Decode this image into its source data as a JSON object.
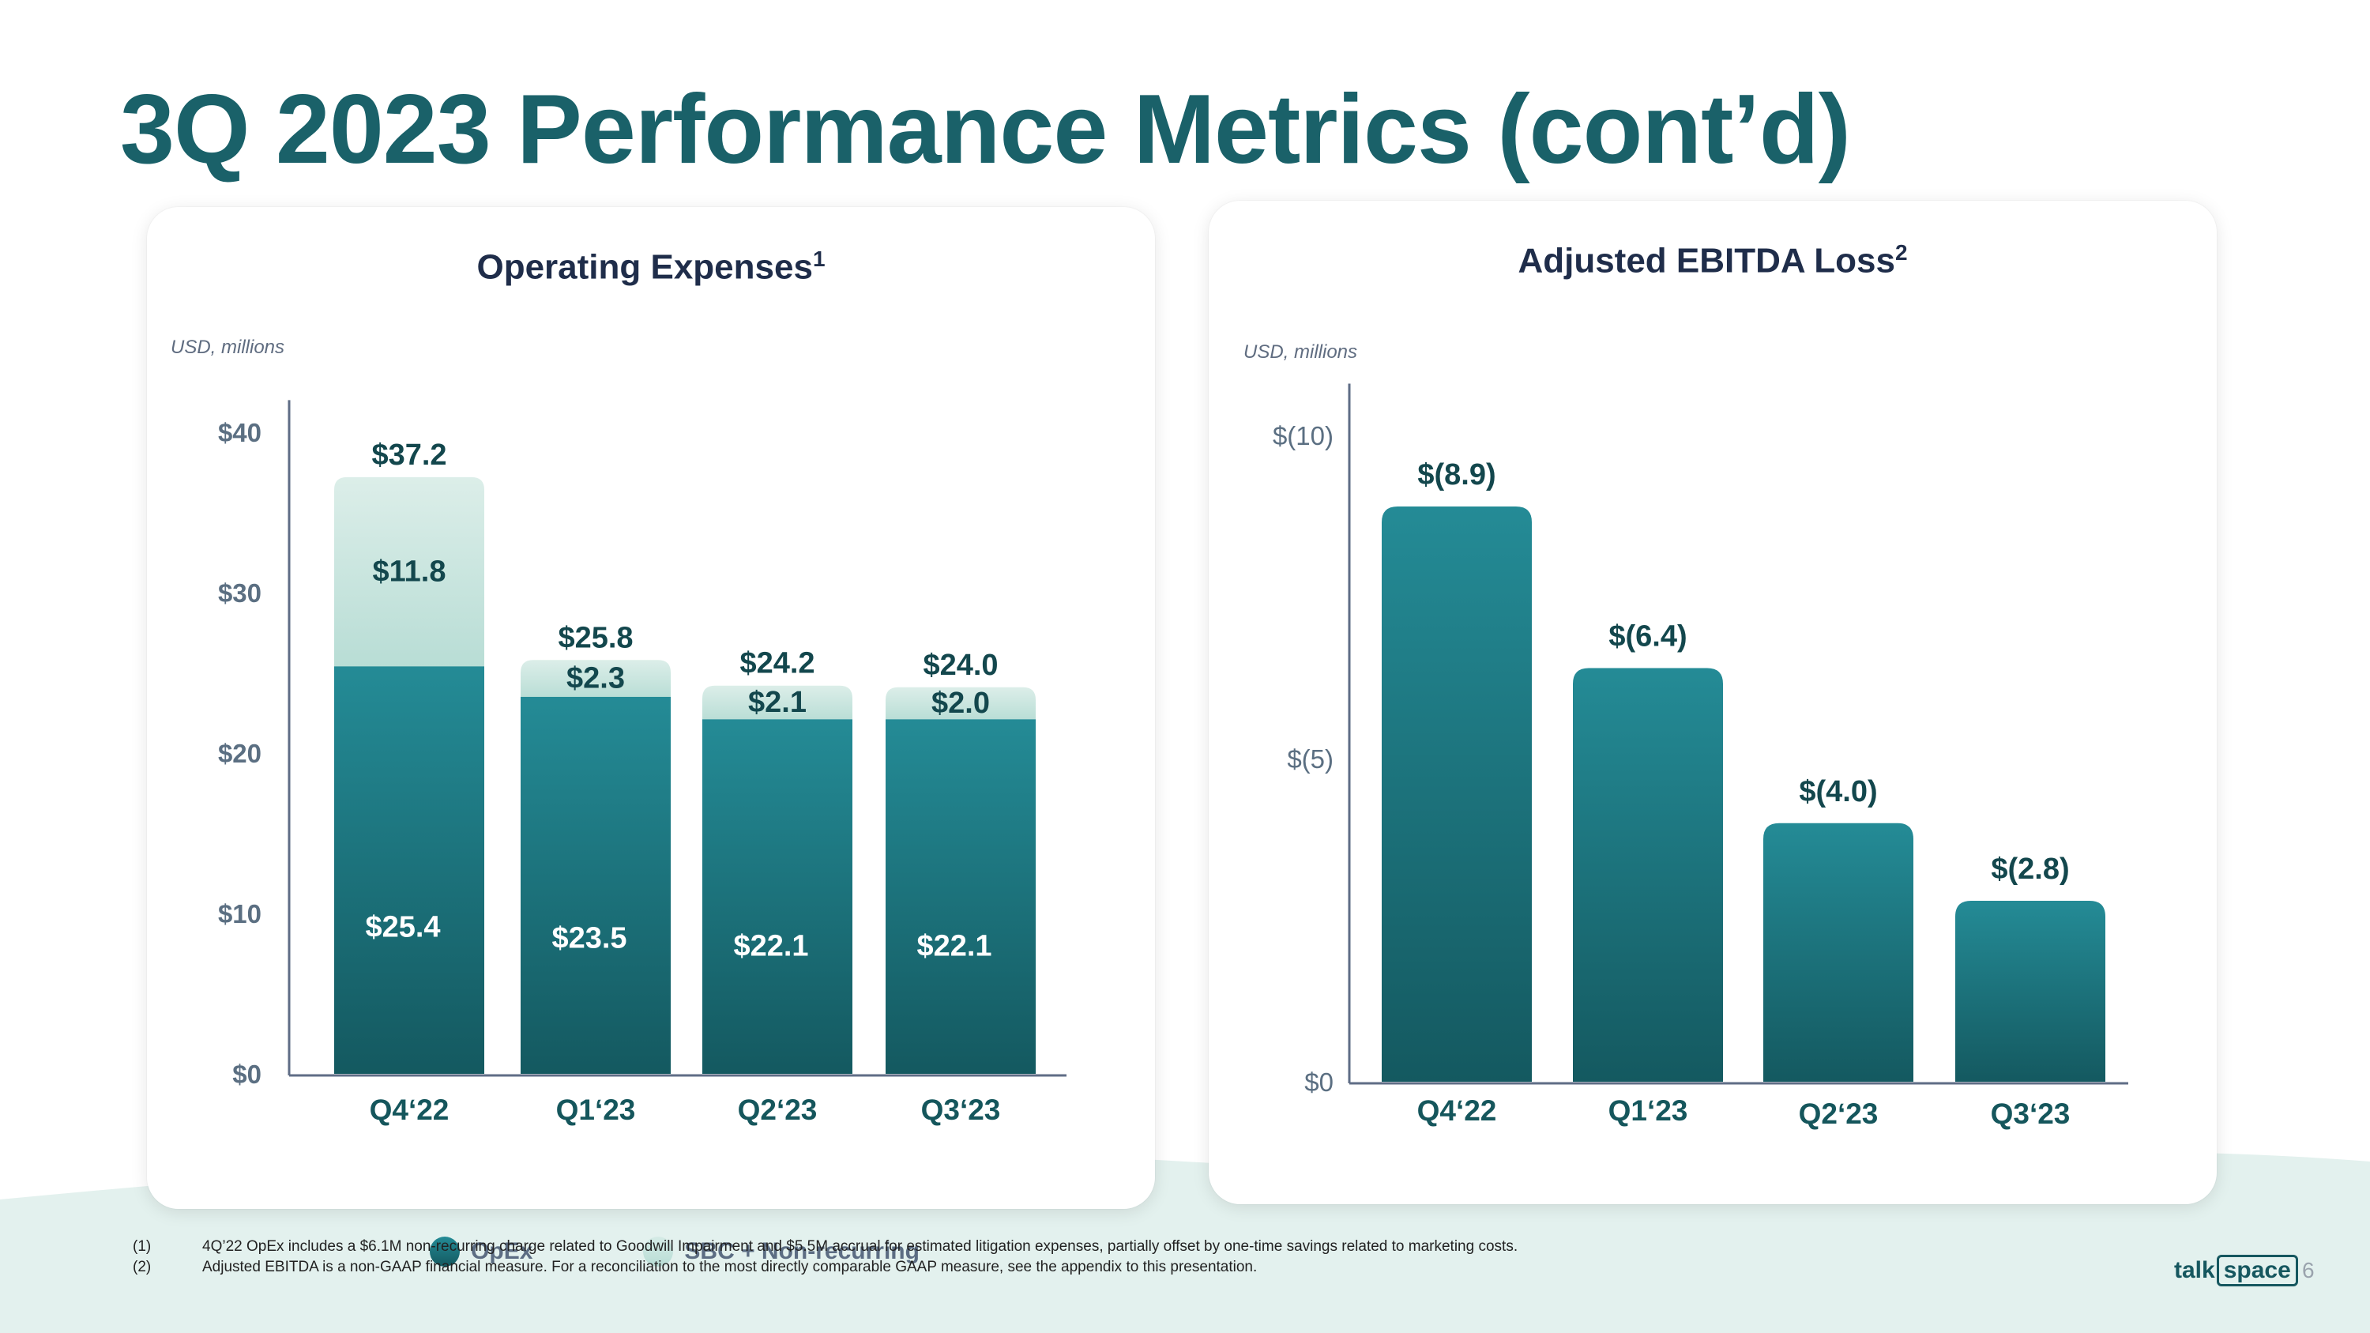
{
  "title": "3Q 2023 Performance Metrics (cont’d)",
  "colors": {
    "title": "#1a6169",
    "bar_top": "#248b96",
    "bar_bottom": "#145960",
    "sbc_top": "#dceee9",
    "sbc_bottom": "#b8ddd5",
    "axis": "#5f6d86",
    "label_dark": "#13474d",
    "background_wave": "#e3f1ee"
  },
  "opex_card": {
    "title": "Operating Expenses",
    "footnote_ref": "1",
    "unit": "USD, millions",
    "legend": [
      {
        "label": "OpEx",
        "icon": "dark-teal-circle"
      },
      {
        "label": "SBC + Non-recurring",
        "icon": "light-teal-circle"
      }
    ]
  },
  "ebitda_card": {
    "title": "Adjusted EBITDA Loss",
    "footnote_ref": "2",
    "unit": "USD, millions"
  },
  "chart_data": [
    {
      "type": "bar",
      "stacked": true,
      "title": "Operating Expenses",
      "ylabel": "USD, millions",
      "categories": [
        "Q4‘22",
        "Q1‘23",
        "Q2‘23",
        "Q3‘23"
      ],
      "series": [
        {
          "name": "OpEx",
          "values": [
            25.4,
            23.5,
            22.1,
            22.1
          ],
          "labels": [
            "$25.4",
            "$23.5",
            "$22.1",
            "$22.1"
          ]
        },
        {
          "name": "SBC + Non-recurring",
          "values": [
            11.8,
            2.3,
            2.1,
            2.0
          ],
          "labels": [
            "$11.8",
            "$2.3",
            "$2.1",
            "$2.0"
          ]
        }
      ],
      "totals": [
        37.2,
        25.8,
        24.2,
        24.0
      ],
      "total_labels": [
        "$37.2",
        "$25.8",
        "$24.2",
        "$24.0"
      ],
      "yticks": [
        0,
        10,
        20,
        30,
        40
      ],
      "ytick_labels": [
        "$0",
        "$10",
        "$20",
        "$30",
        "$40"
      ],
      "ylim": [
        0,
        42.5
      ],
      "legend_position": "bottom"
    },
    {
      "type": "bar",
      "title": "Adjusted EBITDA Loss",
      "ylabel": "USD, millions",
      "categories": [
        "Q4‘22",
        "Q1‘23",
        "Q2‘23",
        "Q3‘23"
      ],
      "values": [
        8.9,
        6.4,
        4.0,
        2.8
      ],
      "value_labels": [
        "$(8.9)",
        "$(6.4)",
        "$(4.0)",
        "$(2.8)"
      ],
      "yticks": [
        0,
        5,
        10
      ],
      "ytick_labels": [
        "$0",
        "$(5)",
        "$(10)"
      ],
      "ylim": [
        0,
        11.5
      ],
      "legend_position": "none"
    }
  ],
  "footnotes": [
    {
      "num": "(1)",
      "text": "4Q’22 OpEx includes a $6.1M non-recurring charge related to Goodwill Impairment and $5.5M accrual for estimated litigation expenses, partially offset by one-time savings related to marketing costs."
    },
    {
      "num": "(2)",
      "text": "Adjusted EBITDA is a non-GAAP financial measure. For a reconciliation to the most directly comparable GAAP measure, see the appendix to this presentation."
    }
  ],
  "brand": {
    "part1": "talk",
    "part2": "space"
  },
  "page_number": "6"
}
